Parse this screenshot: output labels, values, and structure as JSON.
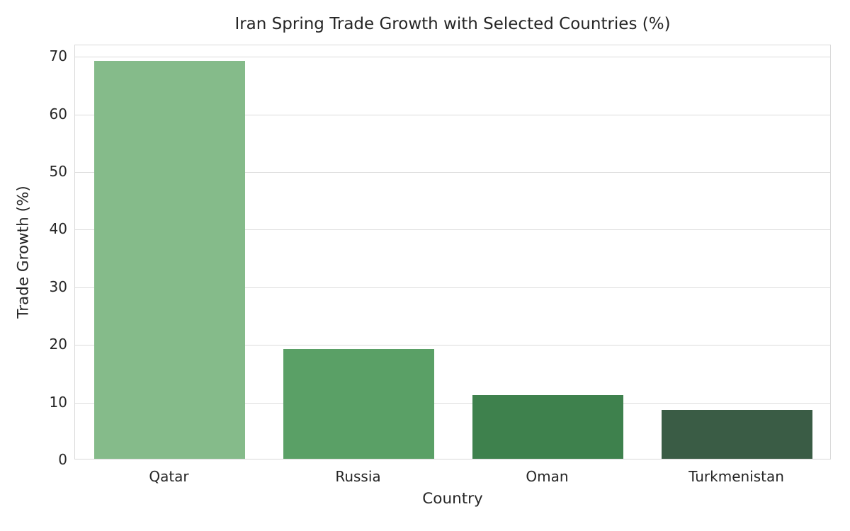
{
  "chart_data": {
    "type": "bar",
    "title": "Iran Spring Trade Growth with Selected Countries (%)",
    "xlabel": "Country",
    "ylabel": "Trade Growth (%)",
    "categories": [
      "Qatar",
      "Russia",
      "Oman",
      "Turkmenistan"
    ],
    "values": [
      69,
      19,
      11,
      8.5
    ],
    "bar_colors": [
      "#85bb8a",
      "#5aa066",
      "#3e814d",
      "#3a5c45"
    ],
    "ylim": [
      0,
      72
    ],
    "yticks": [
      0,
      10,
      20,
      30,
      40,
      50,
      60,
      70
    ],
    "bar_width_fraction": 0.8,
    "grid": true,
    "legend": false
  },
  "style": {
    "background_color": "#ffffff",
    "text_color": "#262626",
    "grid_color": "#dcdcdc",
    "spine_color": "#d9d9d9"
  }
}
